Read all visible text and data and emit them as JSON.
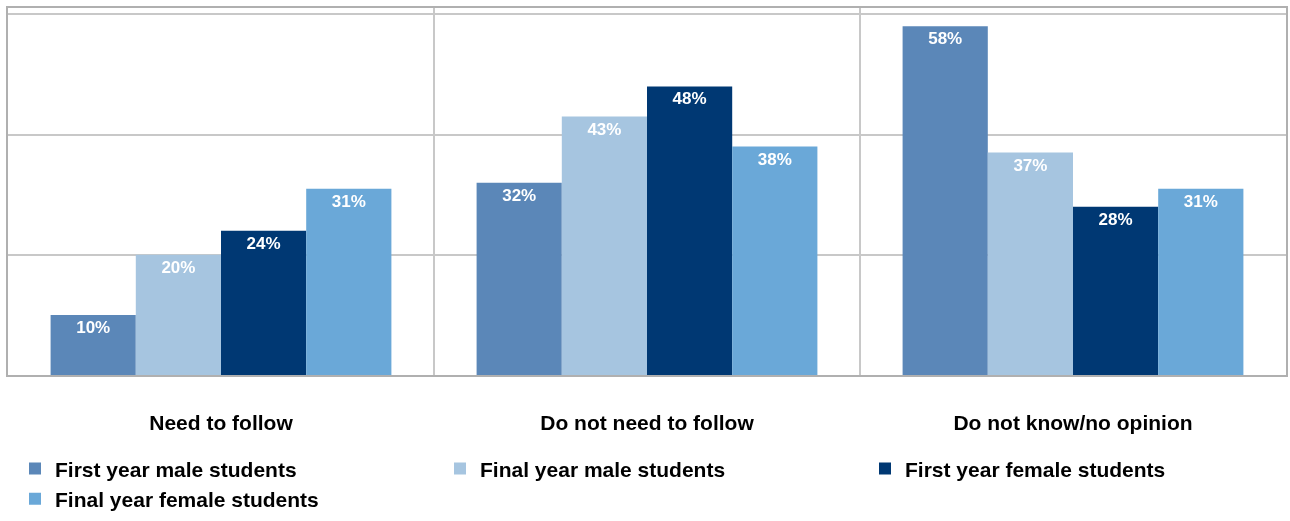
{
  "chart_data": {
    "type": "bar",
    "categories": [
      "Need to follow",
      "Do not need to follow",
      "Do not know/no opinion"
    ],
    "series": [
      {
        "name": "First year male students",
        "color": "#5b87b8",
        "values": [
          10,
          32,
          58
        ],
        "value_labels": [
          "10%",
          "32%",
          "58%"
        ]
      },
      {
        "name": "Final year male students",
        "color": "#a6c5e0",
        "values": [
          20,
          43,
          37
        ],
        "value_labels": [
          "20%",
          "43%",
          "37%"
        ]
      },
      {
        "name": "First year female students",
        "color": "#003873",
        "values": [
          24,
          48,
          28
        ],
        "value_labels": [
          "24%",
          "48%",
          "28%"
        ]
      },
      {
        "name": "Final year female students",
        "color": "#6aa8d8",
        "values": [
          31,
          38,
          31
        ],
        "value_labels": [
          "31%",
          "38%",
          "31%"
        ]
      }
    ],
    "tick_labels": "x",
    "grid": true,
    "legend": "bottom"
  }
}
